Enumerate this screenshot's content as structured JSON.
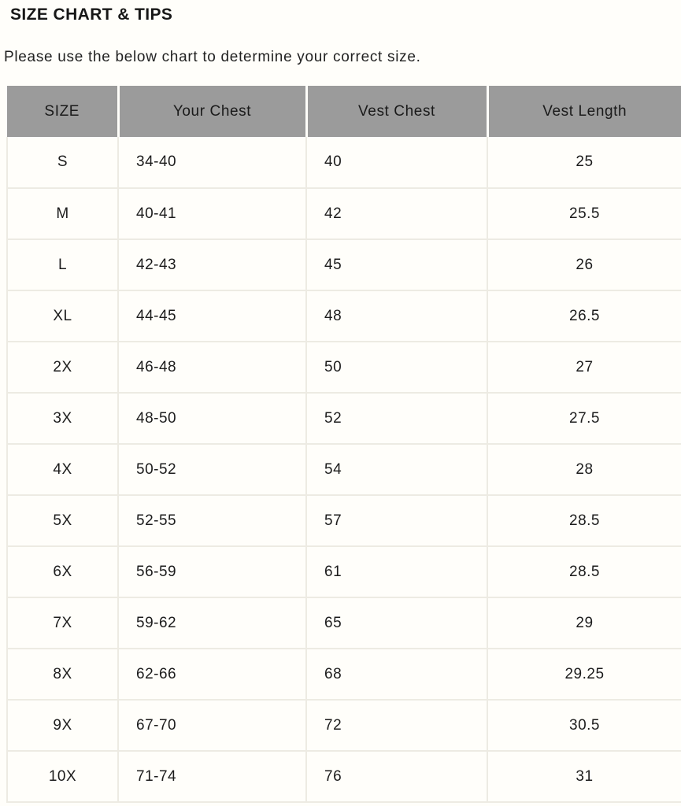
{
  "page": {
    "title": "SIZE CHART & TIPS",
    "subtitle": "Please use the below chart to determine your correct size."
  },
  "chart_data": {
    "type": "table",
    "title": "SIZE CHART & TIPS",
    "columns": [
      "SIZE",
      "Your Chest",
      "Vest Chest",
      "Vest Length"
    ],
    "rows": [
      [
        "S",
        "34-40",
        "40",
        "25"
      ],
      [
        "M",
        "40-41",
        "42",
        "25.5"
      ],
      [
        "L",
        "42-43",
        "45",
        "26"
      ],
      [
        "XL",
        "44-45",
        "48",
        "26.5"
      ],
      [
        "2X",
        "46-48",
        "50",
        "27"
      ],
      [
        "3X",
        "48-50",
        "52",
        "27.5"
      ],
      [
        "4X",
        "50-52",
        "54",
        "28"
      ],
      [
        "5X",
        "52-55",
        "57",
        "28.5"
      ],
      [
        "6X",
        "56-59",
        "61",
        "28.5"
      ],
      [
        "7X",
        "59-62",
        "65",
        "29"
      ],
      [
        "8X",
        "62-66",
        "68",
        "29.25"
      ],
      [
        "9X",
        "67-70",
        "72",
        "30.5"
      ],
      [
        "10X",
        "71-74",
        "76",
        "31"
      ]
    ]
  },
  "colors": {
    "header_background": "#9b9b9b",
    "grid_line": "#edebe3",
    "page_background": "#fffefa",
    "text": "#1c1c1c"
  }
}
